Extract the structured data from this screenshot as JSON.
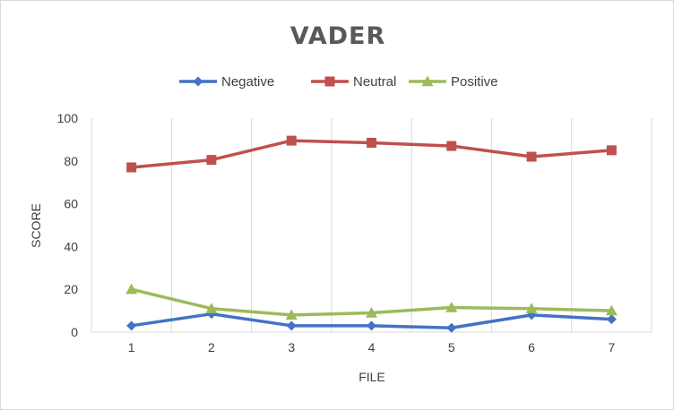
{
  "chart_data": {
    "type": "line",
    "title": "VADER",
    "xlabel": "FILE",
    "ylabel": "SCORE",
    "categories": [
      "1",
      "2",
      "3",
      "4",
      "5",
      "6",
      "7"
    ],
    "ylim": [
      0,
      100
    ],
    "yticks": [
      "0",
      "20",
      "40",
      "60",
      "80",
      "100"
    ],
    "grid": "vertical",
    "legend_position": "top",
    "series": [
      {
        "name": "Negative",
        "color": "#4472c4",
        "marker": "diamond",
        "values": [
          3,
          8.5,
          3,
          3,
          2,
          8,
          6
        ]
      },
      {
        "name": "Neutral",
        "color": "#c0504d",
        "marker": "square",
        "values": [
          77,
          80.5,
          89.5,
          88.5,
          87,
          82,
          85
        ]
      },
      {
        "name": "Positive",
        "color": "#9bbb59",
        "marker": "triangle",
        "values": [
          20,
          11,
          8,
          9,
          11.5,
          11,
          10
        ]
      }
    ]
  }
}
